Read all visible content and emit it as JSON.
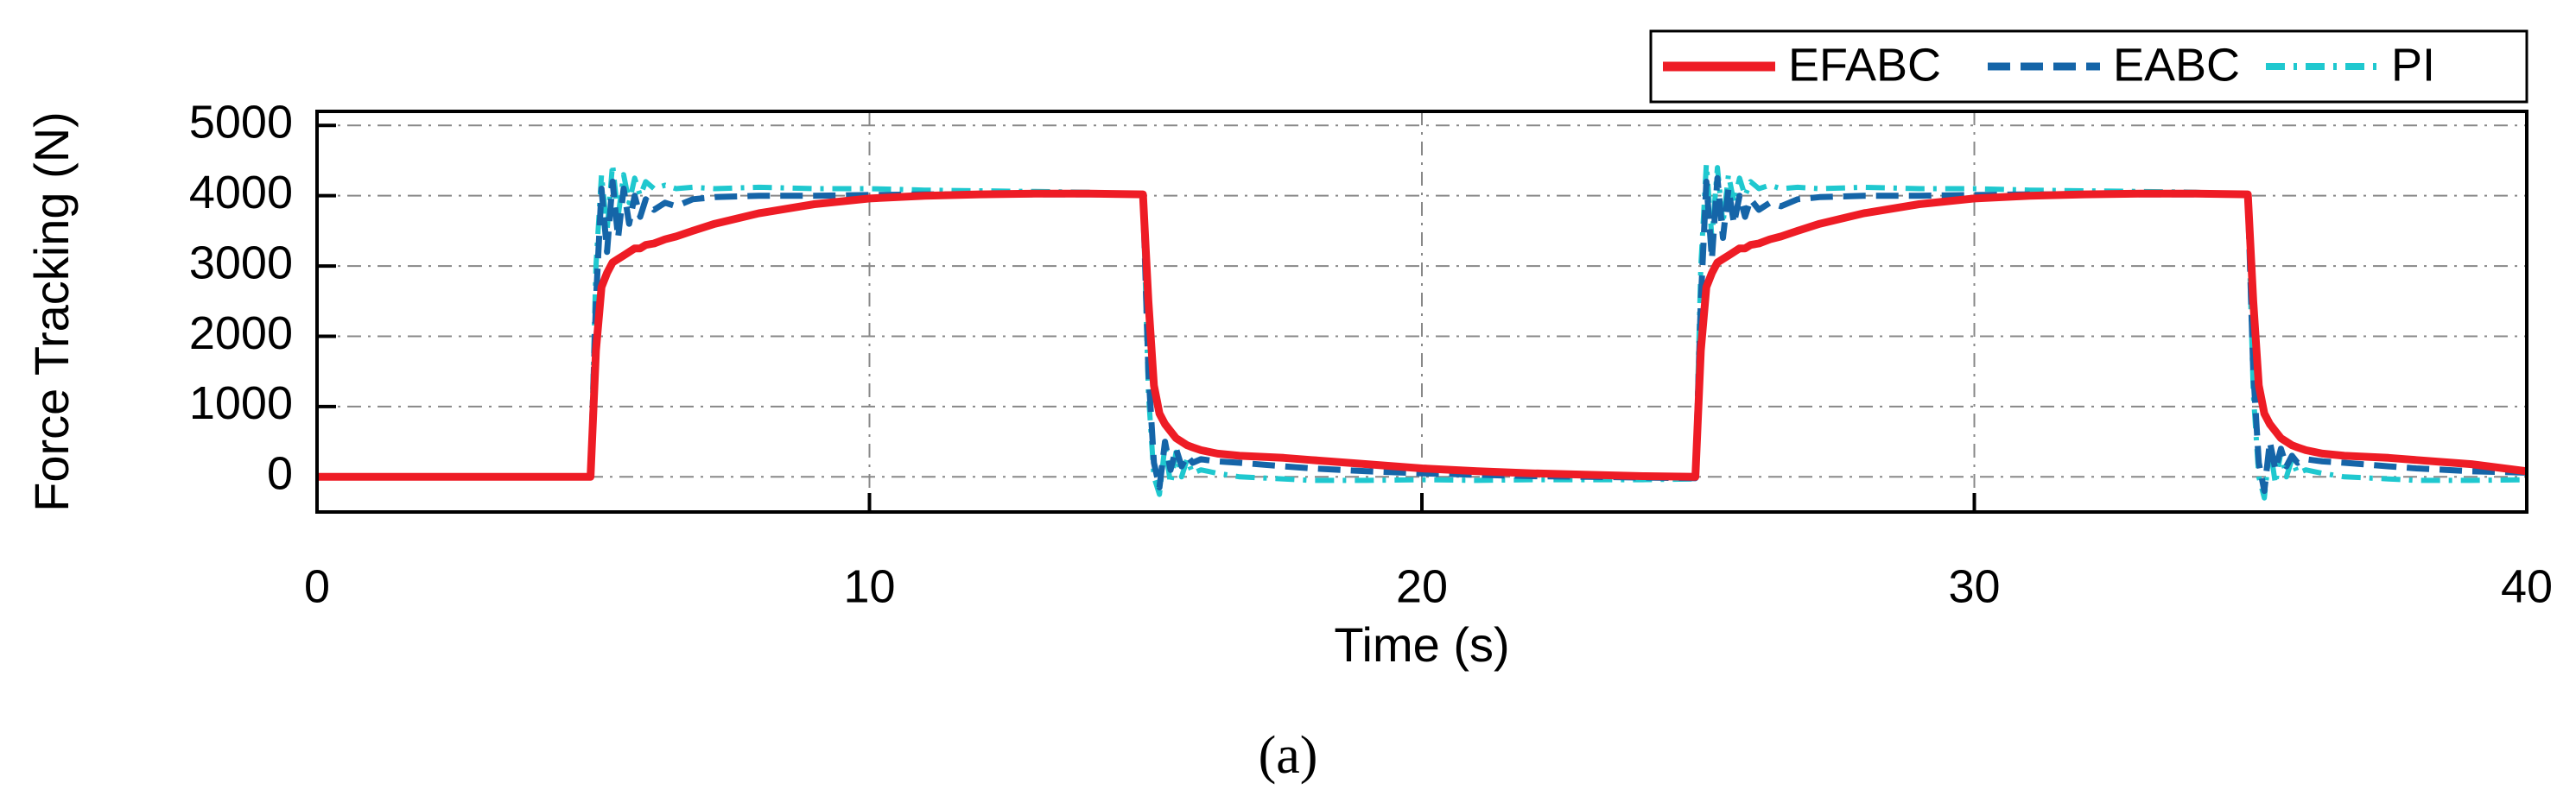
{
  "chart_data": {
    "type": "line",
    "caption": "(a)",
    "x_label": "Time (s)",
    "y_label": "Force Tracking (N)",
    "x": [
      0,
      4.95,
      5.05,
      5.15,
      5.25,
      5.35,
      5.45,
      5.55,
      5.65,
      5.75,
      5.85,
      5.95,
      6.1,
      6.3,
      6.5,
      6.8,
      7.2,
      8,
      9,
      10,
      11,
      12,
      13,
      14,
      14.95,
      15.05,
      15.15,
      15.25,
      15.35,
      15.45,
      15.55,
      15.65,
      15.75,
      15.85,
      16,
      16.3,
      16.7,
      17.5,
      18,
      19,
      20,
      21,
      22,
      23,
      24,
      24.95,
      25.05,
      25.15,
      25.25,
      25.35,
      25.45,
      25.55,
      25.65,
      25.75,
      25.85,
      25.95,
      26.1,
      26.3,
      26.5,
      26.8,
      27.2,
      28,
      29,
      30,
      31,
      32,
      33,
      34,
      34.95,
      35.05,
      35.15,
      35.25,
      35.35,
      35.45,
      35.55,
      35.65,
      35.75,
      35.85,
      36,
      36.3,
      36.7,
      37.5,
      38,
      39,
      40
    ],
    "series": [
      {
        "name": "PI",
        "color": "#1fc8cf",
        "values": [
          0,
          0,
          3000,
          4300,
          3500,
          4450,
          3700,
          4300,
          3900,
          4250,
          4000,
          4200,
          4100,
          4150,
          4100,
          4120,
          4100,
          4120,
          4100,
          4100,
          4080,
          4070,
          4060,
          4050,
          4000,
          1200,
          0,
          -250,
          450,
          -100,
          350,
          0,
          250,
          50,
          100,
          50,
          0,
          -30,
          -50,
          -50,
          -40,
          -50,
          -40,
          -40,
          -40,
          -30,
          3000,
          4450,
          3400,
          4400,
          3600,
          4300,
          3900,
          4250,
          4000,
          4200,
          4100,
          4150,
          4100,
          4120,
          4100,
          4120,
          4100,
          4100,
          4080,
          4070,
          4060,
          4050,
          4000,
          1200,
          0,
          -300,
          450,
          -100,
          350,
          0,
          250,
          50,
          100,
          50,
          0,
          -30,
          -50,
          -50,
          -40
        ]
      },
      {
        "name": "EABC",
        "color": "#1565a8",
        "values": [
          0,
          0,
          2500,
          4100,
          3200,
          4200,
          3400,
          4100,
          3600,
          4000,
          3700,
          3950,
          3800,
          3900,
          3850,
          3950,
          3980,
          4000,
          4000,
          4010,
          4020,
          4020,
          4020,
          4020,
          4020,
          1500,
          200,
          -150,
          500,
          100,
          400,
          150,
          300,
          200,
          250,
          220,
          200,
          150,
          120,
          80,
          50,
          30,
          10,
          0,
          -10,
          -20,
          2500,
          4200,
          3100,
          4250,
          3400,
          4100,
          3600,
          4000,
          3700,
          3950,
          3800,
          3900,
          3850,
          3950,
          3980,
          4000,
          4000,
          4010,
          4020,
          4020,
          4020,
          4020,
          4020,
          1500,
          200,
          -200,
          500,
          100,
          400,
          150,
          300,
          200,
          250,
          220,
          200,
          150,
          120,
          80,
          60
        ]
      },
      {
        "name": "EFABC",
        "color": "#ee1c25",
        "values": [
          0,
          0,
          1800,
          2700,
          2900,
          3050,
          3100,
          3150,
          3200,
          3250,
          3250,
          3300,
          3320,
          3380,
          3420,
          3500,
          3600,
          3750,
          3880,
          3960,
          4000,
          4020,
          4030,
          4030,
          4020,
          2500,
          1300,
          900,
          750,
          650,
          550,
          500,
          450,
          420,
          380,
          330,
          300,
          270,
          240,
          180,
          120,
          80,
          50,
          30,
          10,
          0,
          1800,
          2700,
          2900,
          3050,
          3100,
          3150,
          3200,
          3250,
          3250,
          3300,
          3320,
          3380,
          3420,
          3500,
          3600,
          3750,
          3880,
          3960,
          4000,
          4020,
          4030,
          4030,
          4020,
          2500,
          1300,
          900,
          750,
          650,
          550,
          500,
          450,
          420,
          380,
          330,
          300,
          270,
          240,
          180,
          80
        ]
      }
    ],
    "legend_order": [
      2,
      1,
      0
    ],
    "xlim": [
      0,
      40
    ],
    "xticks": [
      0,
      10,
      20,
      30,
      40
    ],
    "ylim": [
      -500,
      5200
    ],
    "yticks": [
      0,
      1000,
      2000,
      3000,
      4000,
      5000
    ],
    "grid": true,
    "legend": "top right"
  }
}
